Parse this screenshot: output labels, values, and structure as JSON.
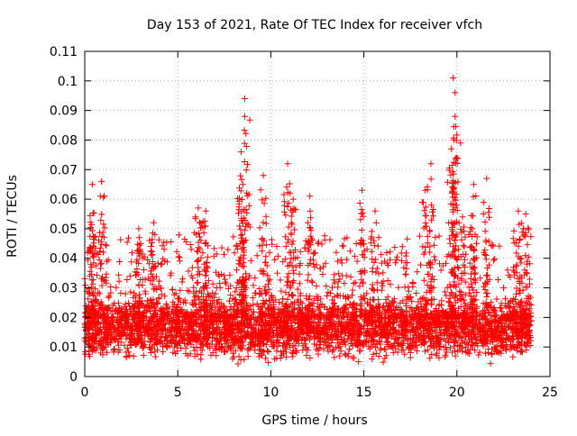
{
  "chart_data": {
    "type": "scatter",
    "title": "Day 153 of 2021, Rate Of TEC Index for receiver vfch",
    "xlabel": "GPS time / hours",
    "ylabel": "ROTI / TECUs",
    "xlim": [
      0,
      25
    ],
    "ylim": [
      0,
      0.11
    ],
    "xticks": [
      0,
      5,
      10,
      15,
      20,
      25
    ],
    "xtick_labels": [
      "0",
      "5",
      "10",
      "15",
      "20",
      "25"
    ],
    "yticks": [
      0,
      0.01,
      0.02,
      0.03,
      0.04,
      0.05,
      0.06,
      0.07,
      0.08,
      0.09,
      0.1,
      0.11
    ],
    "ytick_labels": [
      "0",
      "0.01",
      "0.02",
      "0.03",
      "0.04",
      "0.05",
      "0.06",
      "0.07",
      "0.08",
      "0.09",
      "0.1",
      "0.11"
    ],
    "grid": true,
    "legend": "none",
    "marker": "+",
    "color": "#ff0000",
    "series": [
      {
        "name": "ROTI",
        "x_range": [
          0,
          24
        ],
        "baseline_band": [
          0.006,
          0.027
        ],
        "representative_peaks": [
          {
            "x": 0.4,
            "y": 0.065
          },
          {
            "x": 0.9,
            "y": 0.066
          },
          {
            "x": 0.3,
            "y": 0.05
          },
          {
            "x": 2.9,
            "y": 0.05
          },
          {
            "x": 3.7,
            "y": 0.052
          },
          {
            "x": 6.1,
            "y": 0.057
          },
          {
            "x": 6.5,
            "y": 0.056
          },
          {
            "x": 8.4,
            "y": 0.076
          },
          {
            "x": 8.6,
            "y": 0.094
          },
          {
            "x": 8.6,
            "y": 0.088
          },
          {
            "x": 8.5,
            "y": 0.065
          },
          {
            "x": 9.6,
            "y": 0.068
          },
          {
            "x": 10.9,
            "y": 0.072
          },
          {
            "x": 11.2,
            "y": 0.06
          },
          {
            "x": 12.1,
            "y": 0.061
          },
          {
            "x": 14.9,
            "y": 0.063
          },
          {
            "x": 15.6,
            "y": 0.056
          },
          {
            "x": 18.3,
            "y": 0.063
          },
          {
            "x": 18.6,
            "y": 0.072
          },
          {
            "x": 19.8,
            "y": 0.101
          },
          {
            "x": 19.9,
            "y": 0.096
          },
          {
            "x": 19.9,
            "y": 0.088
          },
          {
            "x": 19.7,
            "y": 0.077
          },
          {
            "x": 20.3,
            "y": 0.054
          },
          {
            "x": 20.9,
            "y": 0.065
          },
          {
            "x": 21.6,
            "y": 0.067
          },
          {
            "x": 23.3,
            "y": 0.056
          },
          {
            "x": 23.7,
            "y": 0.055
          }
        ]
      }
    ]
  }
}
